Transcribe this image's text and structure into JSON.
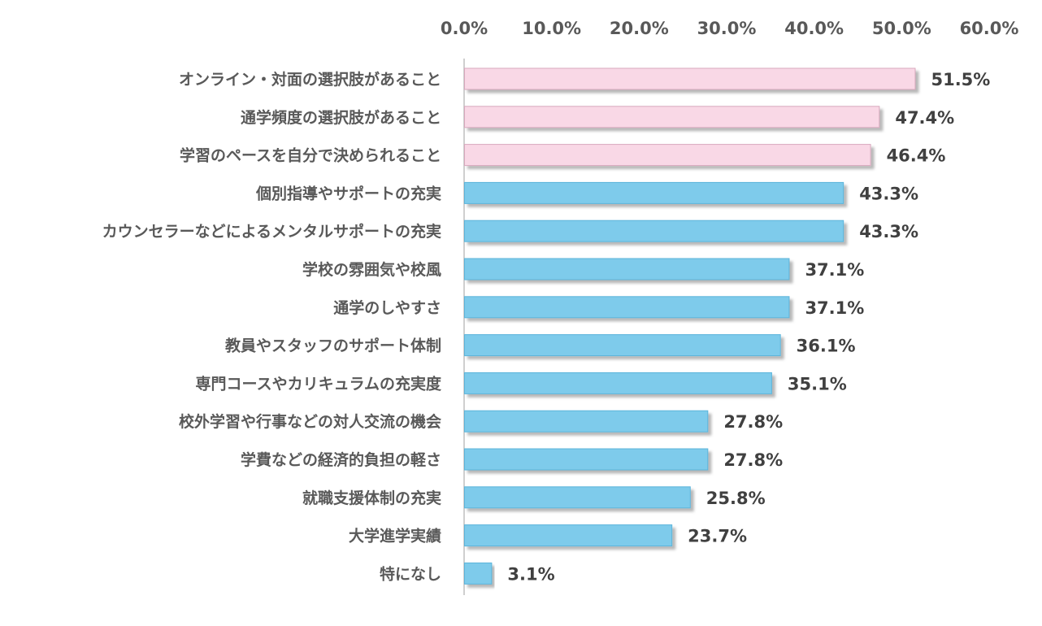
{
  "chart_data": {
    "type": "bar",
    "orientation": "horizontal",
    "title": "",
    "xlabel": "",
    "ylabel": "",
    "xlim": [
      0,
      60
    ],
    "x_ticks": [
      "0.0%",
      "10.0%",
      "20.0%",
      "30.0%",
      "40.0%",
      "50.0%",
      "60.0%"
    ],
    "x_axis_position": "top",
    "grid": false,
    "legend": "none",
    "categories": [
      "オンライン・対面の選択肢があること",
      "通学頻度の選択肢があること",
      "学習のペースを自分で決められること",
      "個別指導やサポートの充実",
      "カウンセラーなどによるメンタルサポートの充実",
      "学校の雰囲気や校風",
      "通学のしやすさ",
      "教員やスタッフのサポート体制",
      "専門コースやカリキュラムの充実度",
      "校外学習や行事などの対人交流の機会",
      "学費などの経済的負担の軽さ",
      "就職支援体制の充実",
      "大学進学実績",
      "特になし"
    ],
    "values": [
      51.5,
      47.4,
      46.4,
      43.3,
      43.3,
      37.1,
      37.1,
      36.1,
      35.1,
      27.8,
      27.8,
      25.8,
      23.7,
      3.1
    ],
    "value_labels": [
      "51.5%",
      "47.4%",
      "46.4%",
      "43.3%",
      "43.3%",
      "37.1%",
      "37.1%",
      "36.1%",
      "35.1%",
      "27.8%",
      "27.8%",
      "25.8%",
      "23.7%",
      "3.1%"
    ],
    "highlighted": [
      true,
      true,
      true,
      false,
      false,
      false,
      false,
      false,
      false,
      false,
      false,
      false,
      false,
      false
    ],
    "colors": {
      "highlight_bar": "#f9d8e6",
      "highlight_border": "#d8a8bd",
      "normal_bar": "#7ecbeb",
      "normal_border": "#5bb4da",
      "axis_line": "#bfbfbf",
      "label_text": "#595959",
      "value_text": "#404040"
    }
  }
}
